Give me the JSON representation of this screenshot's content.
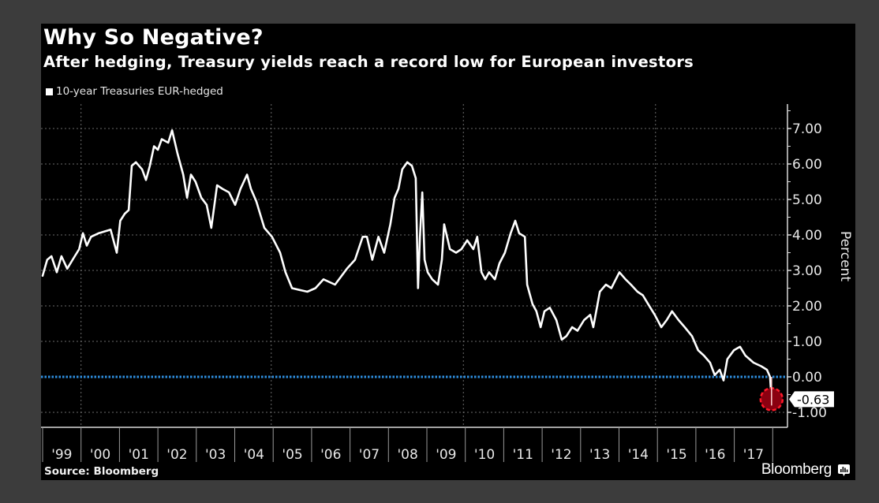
{
  "chart_data": {
    "type": "line",
    "title": "Why So Negative?",
    "subtitle": "After hedging, Treasury yields reach a record low for European investors",
    "xlabel": "",
    "ylabel": "Percent",
    "ylim": [
      -1.4,
      7.8
    ],
    "xlim": [
      1999,
      2018.3
    ],
    "grid": true,
    "legend_position": "top-left",
    "y_ticks": [
      {
        "value": 7,
        "label": "7.00"
      },
      {
        "value": 6,
        "label": "6.00"
      },
      {
        "value": 5,
        "label": "5.00"
      },
      {
        "value": 4,
        "label": "4.00"
      },
      {
        "value": 3,
        "label": "3.00"
      },
      {
        "value": 2,
        "label": "2.00"
      },
      {
        "value": 1,
        "label": "1.00"
      },
      {
        "value": 0,
        "label": "0.00"
      },
      {
        "value": -1,
        "label": "-1.00"
      }
    ],
    "x_ticks": [
      "'99",
      "'00",
      "'01",
      "'02",
      "'03",
      "'04",
      "'05",
      "'06",
      "'07",
      "'08",
      "'09",
      "'10",
      "'11",
      "'12",
      "'13",
      "'14",
      "'15",
      "'16",
      "'17"
    ],
    "x_tick_start_year": 1999,
    "reference_line": {
      "value": 0,
      "color": "#2f8fe0",
      "style": "dotted"
    },
    "annotation": {
      "label": "-0.63",
      "value": -0.63,
      "marker_color": "#8b0010",
      "marker_border": "#ff1a2a"
    },
    "series": [
      {
        "name": "10-year Treasuries EUR-hedged",
        "color": "#ffffff",
        "points": [
          [
            1999.0,
            2.85
          ],
          [
            1999.12,
            3.3
          ],
          [
            1999.23,
            3.4
          ],
          [
            1999.37,
            2.95
          ],
          [
            1999.49,
            3.4
          ],
          [
            1999.64,
            3.05
          ],
          [
            1999.78,
            3.3
          ],
          [
            1999.95,
            3.6
          ],
          [
            2000.05,
            4.05
          ],
          [
            2000.15,
            3.7
          ],
          [
            2000.26,
            3.95
          ],
          [
            2000.46,
            4.05
          ],
          [
            2000.77,
            4.15
          ],
          [
            2000.93,
            3.5
          ],
          [
            2001.02,
            4.4
          ],
          [
            2001.14,
            4.6
          ],
          [
            2001.24,
            4.7
          ],
          [
            2001.32,
            5.95
          ],
          [
            2001.43,
            6.05
          ],
          [
            2001.59,
            5.85
          ],
          [
            2001.69,
            5.55
          ],
          [
            2001.79,
            5.95
          ],
          [
            2001.9,
            6.5
          ],
          [
            2002.0,
            6.4
          ],
          [
            2002.1,
            6.7
          ],
          [
            2002.27,
            6.6
          ],
          [
            2002.37,
            6.95
          ],
          [
            2002.51,
            6.3
          ],
          [
            2002.66,
            5.7
          ],
          [
            2002.76,
            5.05
          ],
          [
            2002.86,
            5.7
          ],
          [
            2002.98,
            5.5
          ],
          [
            2003.13,
            5.05
          ],
          [
            2003.27,
            4.85
          ],
          [
            2003.39,
            4.2
          ],
          [
            2003.54,
            5.4
          ],
          [
            2003.68,
            5.3
          ],
          [
            2003.85,
            5.2
          ],
          [
            2004.01,
            4.85
          ],
          [
            2004.15,
            5.3
          ],
          [
            2004.32,
            5.7
          ],
          [
            2004.42,
            5.3
          ],
          [
            2004.56,
            4.95
          ],
          [
            2004.77,
            4.2
          ],
          [
            2004.97,
            3.95
          ],
          [
            2005.18,
            3.5
          ],
          [
            2005.32,
            2.95
          ],
          [
            2005.49,
            2.5
          ],
          [
            2005.69,
            2.45
          ],
          [
            2005.89,
            2.4
          ],
          [
            2006.1,
            2.5
          ],
          [
            2006.31,
            2.75
          ],
          [
            2006.61,
            2.6
          ],
          [
            2006.92,
            3.05
          ],
          [
            2007.13,
            3.3
          ],
          [
            2007.33,
            3.95
          ],
          [
            2007.44,
            3.95
          ],
          [
            2007.58,
            3.3
          ],
          [
            2007.74,
            3.95
          ],
          [
            2007.89,
            3.5
          ],
          [
            2008.05,
            4.3
          ],
          [
            2008.16,
            5.05
          ],
          [
            2008.26,
            5.3
          ],
          [
            2008.36,
            5.85
          ],
          [
            2008.49,
            6.05
          ],
          [
            2008.61,
            5.95
          ],
          [
            2008.71,
            5.6
          ],
          [
            2008.77,
            2.5
          ],
          [
            2008.82,
            3.95
          ],
          [
            2008.88,
            5.2
          ],
          [
            2008.94,
            3.3
          ],
          [
            2009.02,
            2.95
          ],
          [
            2009.14,
            2.75
          ],
          [
            2009.29,
            2.6
          ],
          [
            2009.39,
            3.3
          ],
          [
            2009.45,
            4.3
          ],
          [
            2009.6,
            3.6
          ],
          [
            2009.76,
            3.5
          ],
          [
            2009.9,
            3.6
          ],
          [
            2010.05,
            3.85
          ],
          [
            2010.21,
            3.6
          ],
          [
            2010.31,
            3.95
          ],
          [
            2010.42,
            2.95
          ],
          [
            2010.52,
            2.75
          ],
          [
            2010.62,
            2.95
          ],
          [
            2010.77,
            2.75
          ],
          [
            2010.89,
            3.2
          ],
          [
            2011.03,
            3.5
          ],
          [
            2011.18,
            4.05
          ],
          [
            2011.3,
            4.4
          ],
          [
            2011.4,
            4.05
          ],
          [
            2011.55,
            3.95
          ],
          [
            2011.61,
            2.6
          ],
          [
            2011.75,
            2.05
          ],
          [
            2011.85,
            1.85
          ],
          [
            2011.96,
            1.4
          ],
          [
            2012.06,
            1.85
          ],
          [
            2012.2,
            1.95
          ],
          [
            2012.37,
            1.6
          ],
          [
            2012.51,
            1.05
          ],
          [
            2012.63,
            1.15
          ],
          [
            2012.78,
            1.4
          ],
          [
            2012.92,
            1.3
          ],
          [
            2013.09,
            1.6
          ],
          [
            2013.25,
            1.75
          ],
          [
            2013.33,
            1.4
          ],
          [
            2013.5,
            2.4
          ],
          [
            2013.66,
            2.6
          ],
          [
            2013.8,
            2.5
          ],
          [
            2014.01,
            2.95
          ],
          [
            2014.17,
            2.75
          ],
          [
            2014.31,
            2.6
          ],
          [
            2014.48,
            2.4
          ],
          [
            2014.62,
            2.3
          ],
          [
            2014.76,
            2.05
          ],
          [
            2014.93,
            1.75
          ],
          [
            2015.1,
            1.4
          ],
          [
            2015.24,
            1.6
          ],
          [
            2015.38,
            1.85
          ],
          [
            2015.55,
            1.6
          ],
          [
            2015.71,
            1.4
          ],
          [
            2015.9,
            1.15
          ],
          [
            2016.06,
            0.75
          ],
          [
            2016.21,
            0.6
          ],
          [
            2016.37,
            0.4
          ],
          [
            2016.49,
            0.05
          ],
          [
            2016.62,
            0.2
          ],
          [
            2016.72,
            -0.1
          ],
          [
            2016.82,
            0.5
          ],
          [
            2016.99,
            0.75
          ],
          [
            2017.15,
            0.85
          ],
          [
            2017.29,
            0.6
          ],
          [
            2017.5,
            0.4
          ],
          [
            2017.7,
            0.3
          ],
          [
            2017.85,
            0.2
          ],
          [
            2017.93,
            0.0
          ],
          [
            2017.97,
            -0.63
          ]
        ]
      }
    ]
  },
  "header": {
    "title": "Why So Negative?",
    "subtitle": "After hedging, Treasury yields reach a record low for European investors"
  },
  "legend": {
    "items": [
      {
        "label": "10-year Treasuries EUR-hedged",
        "color": "#ffffff"
      }
    ]
  },
  "footer": {
    "source": "Source: Bloomberg",
    "brand": "Bloomberg",
    "brand_icon": "bloomberg-terminal-icon"
  },
  "axis": {
    "y_title": "Percent",
    "last_value_label": "-0.63"
  }
}
